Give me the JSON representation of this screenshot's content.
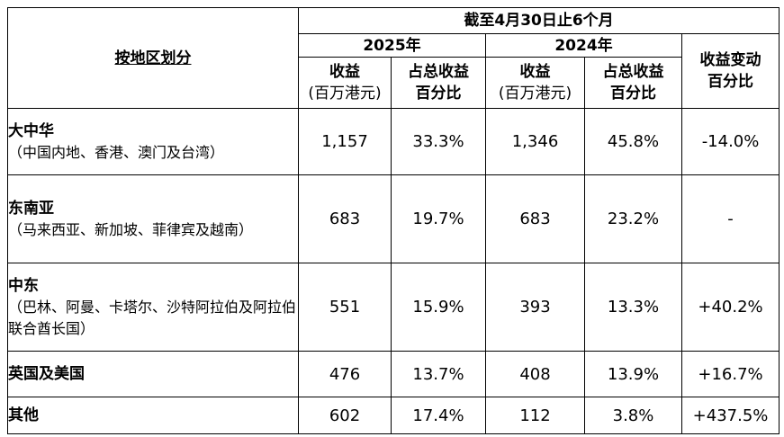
{
  "header": {
    "region_title": "按地区划分",
    "period": "截至4月30日止6个月",
    "year_2025": "2025年",
    "year_2024": "2024年",
    "col_revenue": "收益",
    "col_revenue_unit": "(百万港元)",
    "col_share_l1": "占总收益",
    "col_share_l2": "百分比",
    "col_change_l1": "收益变动",
    "col_change_l2": "百分比"
  },
  "rows": [
    {
      "name": "大中华",
      "sub": "（中国内地、香港、澳门及台湾）",
      "rev_2025": "1,157",
      "pct_2025": "33.3%",
      "rev_2024": "1,346",
      "pct_2024": "45.8%",
      "change": "-14.0%"
    },
    {
      "name": "东南亚",
      "sub": "（马来西亚、新加坡、菲律宾及越南）",
      "rev_2025": "683",
      "pct_2025": "19.7%",
      "rev_2024": "683",
      "pct_2024": "23.2%",
      "change": "-"
    },
    {
      "name": "中东",
      "sub": "（巴林、阿曼、卡塔尔、沙特阿拉伯及阿拉伯联合酋长国）",
      "rev_2025": "551",
      "pct_2025": "15.9%",
      "rev_2024": "393",
      "pct_2024": "13.3%",
      "change": "+40.2%"
    },
    {
      "name": "英国及美国",
      "sub": "",
      "rev_2025": "476",
      "pct_2025": "13.7%",
      "rev_2024": "408",
      "pct_2024": "13.9%",
      "change": "+16.7%"
    },
    {
      "name": "其他",
      "sub": "",
      "rev_2025": "602",
      "pct_2025": "17.4%",
      "rev_2024": "112",
      "pct_2024": "3.8%",
      "change": "+437.5%"
    }
  ]
}
